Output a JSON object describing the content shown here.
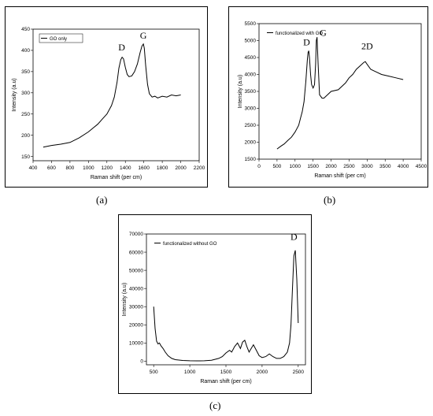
{
  "captions": [
    "(a)",
    "(b)",
    "(c)"
  ],
  "chart_data": [
    {
      "type": "line",
      "xlabel": "Raman shift (per cm)",
      "ylabel": "Intensity (a.u)",
      "xlim": [
        400,
        2200
      ],
      "ylim": [
        140,
        450
      ],
      "xticks": [
        400,
        600,
        800,
        1000,
        1200,
        1400,
        1600,
        1800,
        2000,
        2200
      ],
      "yticks": [
        150,
        200,
        250,
        300,
        350,
        400,
        450
      ],
      "legend": "GO only",
      "legend_position": "top-left",
      "annotations": [
        {
          "text": "D",
          "x": 1360,
          "y": 392
        },
        {
          "text": "G",
          "x": 1595,
          "y": 420
        }
      ],
      "series": [
        {
          "name": "GO only",
          "x": [
            510,
            600,
            700,
            800,
            900,
            1000,
            1050,
            1100,
            1150,
            1200,
            1250,
            1280,
            1310,
            1330,
            1350,
            1365,
            1380,
            1400,
            1420,
            1440,
            1470,
            1500,
            1530,
            1560,
            1580,
            1595,
            1605,
            1620,
            1640,
            1660,
            1690,
            1720,
            1750,
            1800,
            1850,
            1900,
            1950,
            2000
          ],
          "y": [
            172,
            176,
            179,
            183,
            194,
            208,
            217,
            226,
            238,
            250,
            270,
            290,
            325,
            358,
            378,
            384,
            380,
            360,
            343,
            338,
            340,
            350,
            368,
            395,
            410,
            415,
            405,
            365,
            320,
            298,
            290,
            292,
            288,
            292,
            290,
            295,
            293,
            295
          ]
        }
      ]
    },
    {
      "type": "line",
      "xlabel": "Raman shift (per cm)",
      "ylabel": "Intensity (a.u)",
      "xlim": [
        0,
        4500
      ],
      "ylim": [
        1500,
        5500
      ],
      "xticks": [
        0,
        500,
        1000,
        1500,
        2000,
        2500,
        3000,
        3500,
        4000,
        4500
      ],
      "yticks": [
        1500,
        2000,
        2500,
        3000,
        3500,
        4000,
        4500,
        5000,
        5500
      ],
      "legend": "functionalized with GO",
      "legend_position": "top-left",
      "annotations": [
        {
          "text": "D",
          "x": 1320,
          "y": 4770
        },
        {
          "text": "G",
          "x": 1780,
          "y": 5050
        },
        {
          "text": "2D",
          "x": 3000,
          "y": 4650
        }
      ],
      "series": [
        {
          "name": "functionalized with GO",
          "x": [
            500,
            600,
            700,
            800,
            900,
            1000,
            1100,
            1150,
            1200,
            1250,
            1300,
            1340,
            1360,
            1380,
            1400,
            1430,
            1460,
            1500,
            1540,
            1570,
            1590,
            1610,
            1640,
            1680,
            1750,
            1800,
            2000,
            2200,
            2400,
            2500,
            2600,
            2700,
            2800,
            2900,
            2950,
            3000,
            3100,
            3200,
            3400,
            3600,
            3800,
            4000
          ],
          "y": [
            1800,
            1880,
            1950,
            2050,
            2150,
            2300,
            2500,
            2700,
            2900,
            3200,
            3800,
            4400,
            4650,
            4700,
            4500,
            4000,
            3700,
            3600,
            3700,
            4300,
            5000,
            5100,
            4300,
            3400,
            3300,
            3300,
            3500,
            3550,
            3750,
            3900,
            4000,
            4150,
            4250,
            4350,
            4380,
            4300,
            4150,
            4100,
            4000,
            3950,
            3900,
            3850
          ]
        }
      ]
    },
    {
      "type": "line",
      "xlabel": "Raman shift (per cm)",
      "ylabel": "Intensity (a.u)",
      "xlim": [
        400,
        2600
      ],
      "ylim": [
        -2000,
        70000
      ],
      "xticks": [
        500,
        1000,
        1500,
        2000,
        2500
      ],
      "yticks": [
        0,
        10000,
        20000,
        30000,
        40000,
        50000,
        60000,
        70000
      ],
      "legend": "functionalized without GO",
      "legend_position": "top-left",
      "annotations": [
        {
          "text": "D",
          "x": 2440,
          "y": 65000
        }
      ],
      "series": [
        {
          "name": "functionalized without GO",
          "x": [
            500,
            520,
            540,
            560,
            580,
            600,
            630,
            660,
            700,
            750,
            800,
            900,
            1000,
            1100,
            1200,
            1300,
            1400,
            1450,
            1500,
            1550,
            1580,
            1620,
            1660,
            1700,
            1730,
            1760,
            1790,
            1820,
            1850,
            1880,
            1920,
            1960,
            2000,
            2050,
            2100,
            2150,
            2200,
            2250,
            2300,
            2350,
            2380,
            2400,
            2420,
            2440,
            2460,
            2480,
            2500
          ],
          "y": [
            30000,
            18000,
            11000,
            9500,
            10000,
            8500,
            7000,
            5000,
            3000,
            1500,
            800,
            400,
            200,
            150,
            200,
            500,
            1500,
            2500,
            4500,
            6000,
            5000,
            8000,
            10000,
            7000,
            10500,
            11500,
            8000,
            5000,
            7000,
            9000,
            6000,
            3000,
            2000,
            2500,
            4000,
            2500,
            1500,
            1500,
            2500,
            5000,
            10000,
            20000,
            40000,
            58000,
            61000,
            45000,
            21000
          ]
        }
      ]
    }
  ]
}
